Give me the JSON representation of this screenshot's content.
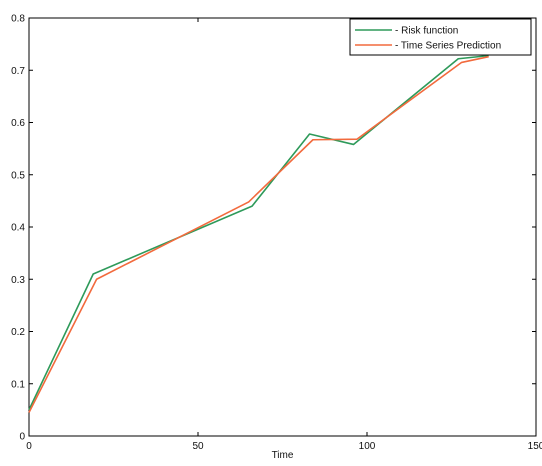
{
  "chart_data": {
    "type": "line",
    "title": "",
    "xlabel": "Time",
    "ylabel": "",
    "xlim": [
      0,
      150
    ],
    "ylim": [
      0,
      0.8
    ],
    "x_ticks": [
      0,
      50,
      100,
      150
    ],
    "y_ticks": [
      0,
      0.1,
      0.2,
      0.3,
      0.4,
      0.5,
      0.6,
      0.7,
      0.8
    ],
    "x_tick_labels": [
      "0",
      "50",
      "100",
      "150"
    ],
    "y_tick_labels": [
      "0",
      "0.1",
      "0.2",
      "0.3",
      "0.4",
      "0.5",
      "0.6",
      "0.7",
      "0.8"
    ],
    "grid": false,
    "legend_position": "top-right",
    "series": [
      {
        "name": "- Risk function",
        "color": "#2e9a5a",
        "x": [
          0,
          19,
          66,
          83,
          96,
          127,
          136
        ],
        "y": [
          0.05,
          0.31,
          0.44,
          0.578,
          0.558,
          0.722,
          0.728
        ]
      },
      {
        "name": "- Time Series Prediction",
        "color": "#f26a3d",
        "x": [
          0,
          20,
          65,
          84,
          97,
          128,
          136
        ],
        "y": [
          0.045,
          0.3,
          0.448,
          0.567,
          0.568,
          0.715,
          0.726
        ]
      }
    ]
  }
}
